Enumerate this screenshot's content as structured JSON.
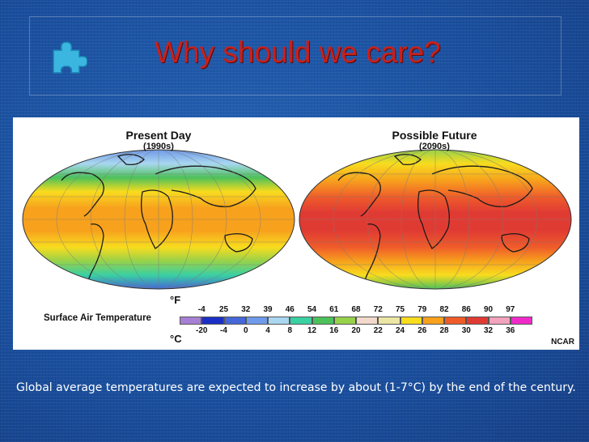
{
  "slide": {
    "title": "Why should we care?",
    "caption": "Global average temperatures are expected to increase by about (1-7°C) by the end of the century."
  },
  "figure": {
    "left_map": {
      "title": "Present Day",
      "subtitle": "(1990s)"
    },
    "right_map": {
      "title": "Possible Future",
      "subtitle": "(2090s)"
    },
    "legend": {
      "title": "Surface Air Temperature",
      "unit_f": "°F",
      "unit_c": "°C",
      "f_ticks": [
        "-4",
        "25",
        "32",
        "39",
        "46",
        "54",
        "61",
        "68",
        "72",
        "75",
        "79",
        "82",
        "86",
        "90",
        "97"
      ],
      "c_ticks": [
        "-20",
        "-4",
        "0",
        "4",
        "8",
        "12",
        "16",
        "20",
        "22",
        "24",
        "26",
        "28",
        "30",
        "32",
        "36"
      ],
      "colors": [
        "#a77fd4",
        "#1b2fc4",
        "#4567d8",
        "#6f9ae9",
        "#a9d7f0",
        "#3ad0a2",
        "#4cc15a",
        "#97d24a",
        "#f3d9cb",
        "#ece6a5",
        "#f8dc1e",
        "#f7a11d",
        "#ef5c2a",
        "#e03b33",
        "#f2a3bd",
        "#f02ac8"
      ]
    },
    "credit": "NCAR"
  },
  "icons": {
    "puzzle": "puzzle-piece-icon"
  },
  "colors": {
    "background": "#1a4f9e",
    "title": "#c8201c",
    "caption": "#ffffff"
  }
}
